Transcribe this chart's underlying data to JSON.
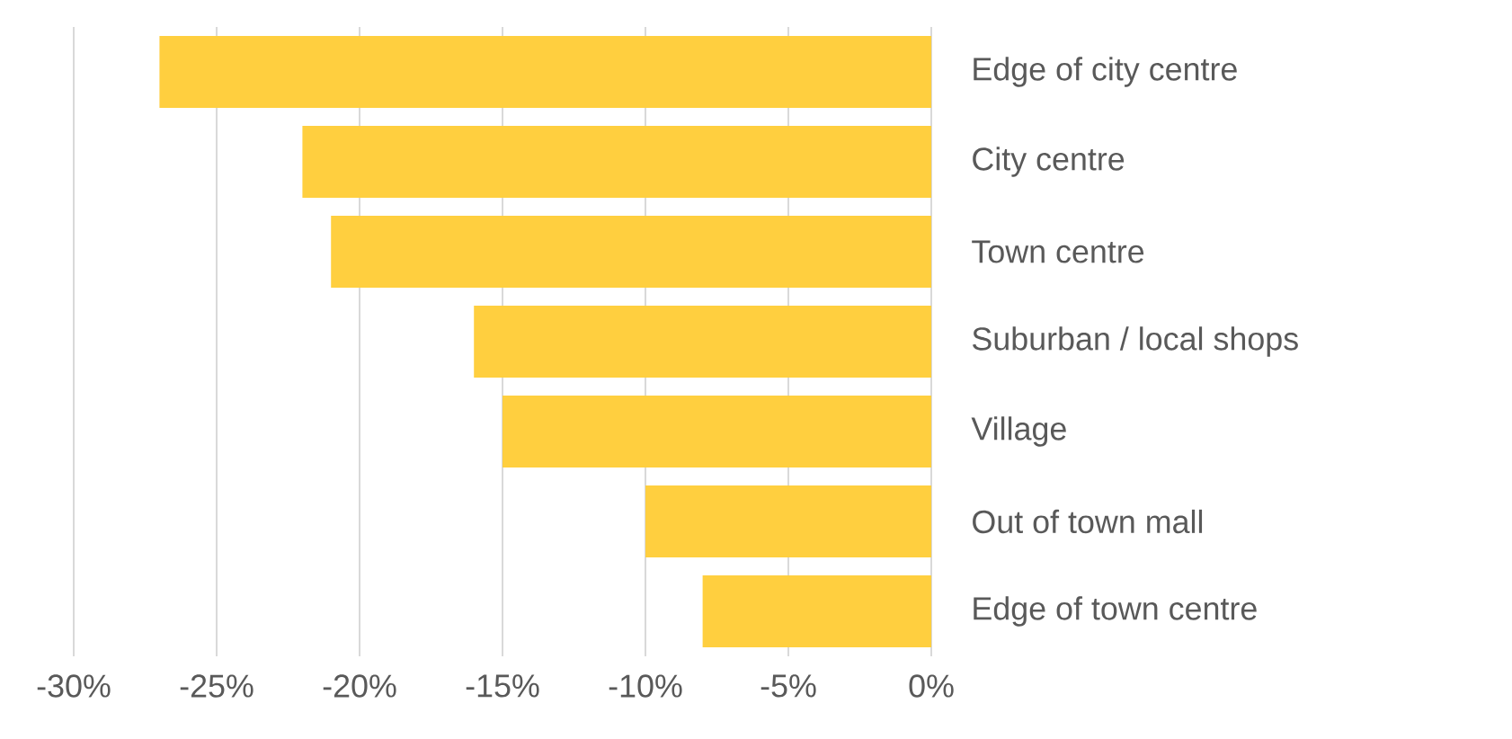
{
  "chart_data": {
    "type": "bar",
    "orientation": "horizontal",
    "categories": [
      "Edge of city centre",
      "City centre",
      "Town centre",
      "Suburban / local shops",
      "Village",
      "Out of town mall",
      "Edge of town centre"
    ],
    "values": [
      -27,
      -22,
      -21,
      -16,
      -15,
      -10,
      -8
    ],
    "color": "#ffcf3f",
    "xlim": [
      -30,
      0
    ],
    "xticks": [
      {
        "value": -30,
        "label": "-30%"
      },
      {
        "value": -25,
        "label": "-25%"
      },
      {
        "value": -20,
        "label": "-20%"
      },
      {
        "value": -15,
        "label": "-15%"
      },
      {
        "value": -10,
        "label": "-10%"
      },
      {
        "value": -5,
        "label": "-5%"
      },
      {
        "value": 0,
        "label": "0%"
      }
    ],
    "grid": "x"
  }
}
